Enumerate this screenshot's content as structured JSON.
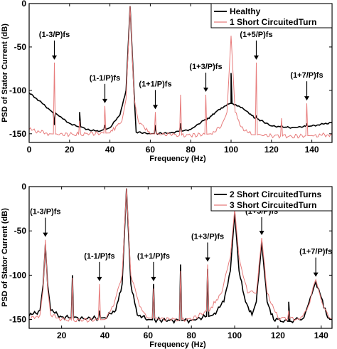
{
  "chart_data": [
    {
      "type": "line",
      "xlabel": "Frequency (Hz)",
      "ylabel": "PSD of Stator Current (dB)",
      "xlim": [
        0,
        150
      ],
      "ylim": [
        -160,
        0
      ],
      "xticks": [
        0,
        20,
        40,
        60,
        80,
        100,
        120,
        140
      ],
      "yticks": [
        0,
        -50,
        -100,
        -150
      ],
      "grid": false,
      "legend_position": "top-right",
      "baseline_series": "Healthy",
      "series": [
        {
          "name": "Healthy",
          "color": "#000000",
          "baseline": [
            [
              0,
              -103
            ],
            [
              5,
              -112
            ],
            [
              10,
              -122
            ],
            [
              15,
              -130
            ],
            [
              20,
              -138
            ],
            [
              25,
              -142
            ],
            [
              30,
              -146
            ],
            [
              35,
              -147
            ],
            [
              40,
              -143
            ],
            [
              45,
              -128
            ],
            [
              48,
              -100
            ],
            [
              50,
              -3
            ],
            [
              52,
              -105
            ],
            [
              53,
              -148
            ],
            [
              60,
              -150
            ],
            [
              70,
              -149
            ],
            [
              80,
              -145
            ],
            [
              88,
              -133
            ],
            [
              94,
              -122
            ],
            [
              100,
              -115
            ],
            [
              106,
              -121
            ],
            [
              112,
              -132
            ],
            [
              120,
              -141
            ],
            [
              130,
              -143
            ],
            [
              140,
              -141
            ],
            [
              150,
              -137
            ]
          ],
          "peaks": [
            [
              12.5,
              -140
            ],
            [
              25,
              -125
            ],
            [
              37.5,
              -140
            ],
            [
              62.5,
              -140
            ],
            [
              75,
              -138
            ],
            [
              87.5,
              -134
            ],
            [
              100,
              -80
            ],
            [
              112.5,
              -130
            ],
            [
              125,
              -140
            ],
            [
              137.5,
              -139
            ]
          ]
        },
        {
          "name": "1 Short CircuitedTurn",
          "color": "#e77b7b",
          "baseline": [
            [
              0,
              -145
            ],
            [
              10,
              -150
            ],
            [
              20,
              -151
            ],
            [
              30,
              -150
            ],
            [
              40,
              -149
            ],
            [
              46,
              -135
            ],
            [
              48,
              -110
            ],
            [
              50,
              -3
            ],
            [
              52,
              -110
            ],
            [
              54,
              -135
            ],
            [
              60,
              -150
            ],
            [
              70,
              -151
            ],
            [
              80,
              -152
            ],
            [
              90,
              -150
            ],
            [
              95,
              -142
            ],
            [
              98,
              -125
            ],
            [
              100,
              -37
            ],
            [
              102,
              -125
            ],
            [
              105,
              -142
            ],
            [
              110,
              -151
            ],
            [
              120,
              -152
            ],
            [
              130,
              -153
            ],
            [
              140,
              -152
            ],
            [
              150,
              -151
            ]
          ],
          "peaks": [
            [
              12.5,
              -68
            ],
            [
              25,
              -135
            ],
            [
              37.5,
              -118
            ],
            [
              62.5,
              -125
            ],
            [
              75,
              -105
            ],
            [
              87.5,
              -105
            ],
            [
              112.5,
              -68
            ],
            [
              125,
              -132
            ],
            [
              137.5,
              -115
            ]
          ]
        }
      ],
      "annotations": [
        {
          "label": "(1-3/P)fs",
          "x": 12.5,
          "y": -68
        },
        {
          "label": "(1-1/P)fs",
          "x": 37.5,
          "y": -118
        },
        {
          "label": "(1+1/P)fs",
          "x": 62.5,
          "y": -125
        },
        {
          "label": "(1+3/P)fs",
          "x": 87.5,
          "y": -105
        },
        {
          "label": "(1+5/P)fs",
          "x": 112.5,
          "y": -68
        },
        {
          "label": "(1+7/P)fs",
          "x": 137.5,
          "y": -115
        }
      ]
    },
    {
      "type": "line",
      "xlabel": "Frequency (Hz)",
      "ylabel": "PSD of Stator Current (dB)",
      "xlim": [
        5,
        145
      ],
      "ylim": [
        -160,
        0
      ],
      "xticks": [
        20,
        40,
        60,
        80,
        100,
        120,
        140
      ],
      "yticks": [
        0,
        -50,
        -100,
        -150
      ],
      "grid": false,
      "legend_position": "top-right",
      "series": [
        {
          "name": "2 Short CircuitedTurns",
          "color": "#000000",
          "baseline": [
            [
              5,
              -146
            ],
            [
              10,
              -140
            ],
            [
              11.5,
              -110
            ],
            [
              12.5,
              -65
            ],
            [
              13.5,
              -110
            ],
            [
              15,
              -140
            ],
            [
              20,
              -147
            ],
            [
              30,
              -149
            ],
            [
              40,
              -148
            ],
            [
              45,
              -140
            ],
            [
              48,
              -110
            ],
            [
              50,
              -2
            ],
            [
              52,
              -110
            ],
            [
              55,
              -145
            ],
            [
              60,
              -150
            ],
            [
              70,
              -151
            ],
            [
              80,
              -151
            ],
            [
              90,
              -145
            ],
            [
              95,
              -130
            ],
            [
              98,
              -95
            ],
            [
              100,
              -30
            ],
            [
              102,
              -95
            ],
            [
              105,
              -130
            ],
            [
              108,
              -145
            ],
            [
              110,
              -130
            ],
            [
              112.5,
              -62
            ],
            [
              115,
              -130
            ],
            [
              118,
              -150
            ],
            [
              125,
              -152
            ],
            [
              132,
              -148
            ],
            [
              135,
              -125
            ],
            [
              137.5,
              -108
            ],
            [
              140,
              -125
            ],
            [
              143,
              -148
            ],
            [
              145,
              -150
            ]
          ],
          "peaks": [
            [
              25,
              -100
            ],
            [
              37.5,
              -140
            ],
            [
              62.5,
              -110
            ],
            [
              75,
              -88
            ],
            [
              87.5,
              -93
            ],
            [
              125,
              -130
            ]
          ]
        },
        {
          "name": "3 Short CircuitedTurn",
          "color": "#e77b7b",
          "baseline": [
            [
              5,
              -150
            ],
            [
              10,
              -145
            ],
            [
              11.5,
              -115
            ],
            [
              12.5,
              -60
            ],
            [
              13.5,
              -115
            ],
            [
              15,
              -145
            ],
            [
              20,
              -150
            ],
            [
              30,
              -151
            ],
            [
              40,
              -150
            ],
            [
              44,
              -135
            ],
            [
              48,
              -100
            ],
            [
              50,
              -2
            ],
            [
              52,
              -100
            ],
            [
              56,
              -135
            ],
            [
              60,
              -148
            ],
            [
              70,
              -150
            ],
            [
              80,
              -150
            ],
            [
              88,
              -140
            ],
            [
              94,
              -120
            ],
            [
              98,
              -80
            ],
            [
              100,
              -25
            ],
            [
              102,
              -80
            ],
            [
              106,
              -120
            ],
            [
              110,
              -120
            ],
            [
              112.5,
              -58
            ],
            [
              115,
              -120
            ],
            [
              120,
              -148
            ],
            [
              130,
              -150
            ],
            [
              134,
              -135
            ],
            [
              137.5,
              -105
            ],
            [
              141,
              -135
            ],
            [
              145,
              -150
            ]
          ],
          "peaks": [
            [
              25,
              -103
            ],
            [
              37.5,
              -110
            ],
            [
              62.5,
              -115
            ],
            [
              75,
              -95
            ],
            [
              87.5,
              -88
            ],
            [
              125,
              -140
            ]
          ]
        }
      ],
      "annotations": [
        {
          "label": "(1-3/P)fs",
          "x": 12.5,
          "y": -60
        },
        {
          "label": "(1-1/P)fs",
          "x": 37.5,
          "y": -110
        },
        {
          "label": "(1+1/P)fs",
          "x": 62.5,
          "y": -110
        },
        {
          "label": "(1+3/P)fs",
          "x": 87.5,
          "y": -88
        },
        {
          "label": "(1+5/P)fs",
          "x": 112.5,
          "y": -58
        },
        {
          "label": "(1+7/P)fs",
          "x": 137.5,
          "y": -105
        }
      ]
    }
  ]
}
